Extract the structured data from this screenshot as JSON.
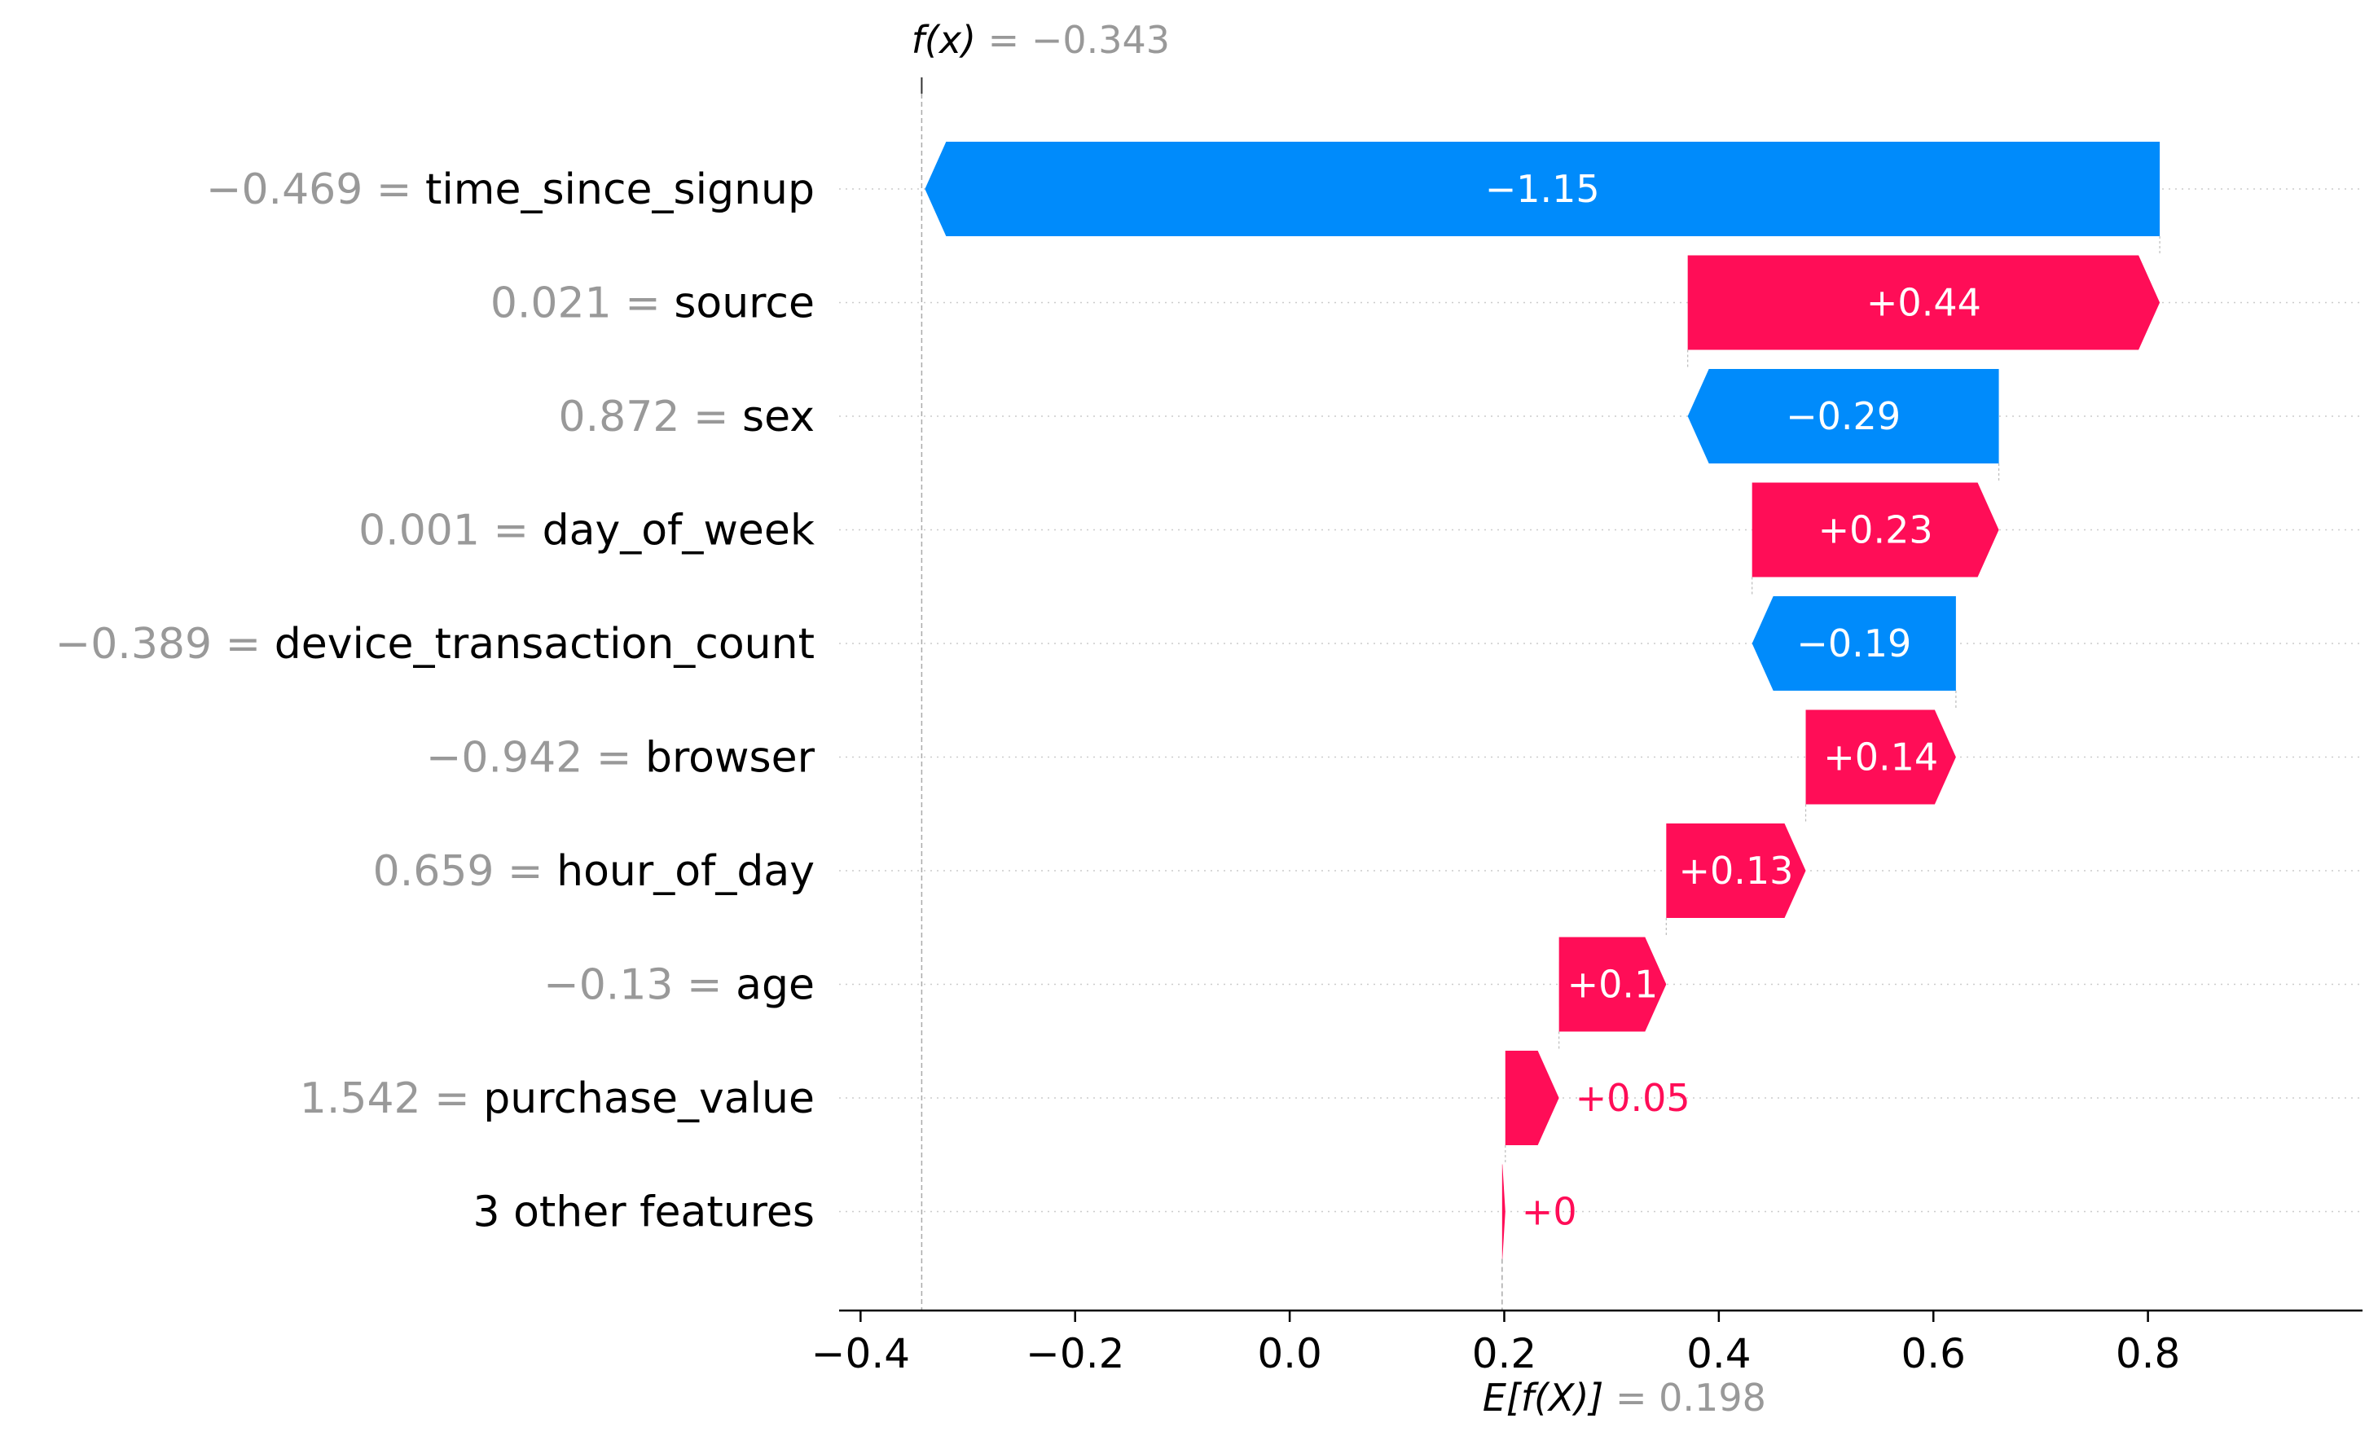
{
  "chart_data": {
    "type": "waterfall",
    "fx_label": "f(x)",
    "fx_value": "= −0.343",
    "base_label": "E[f(X)]",
    "base_value_text": "= 0.198",
    "base_value": 0.198,
    "final_value": -0.343,
    "xlim": [
      -0.42,
      1.0
    ],
    "xticks": [
      -0.4,
      -0.2,
      0.0,
      0.2,
      0.4,
      0.6,
      0.8
    ],
    "xtick_labels": [
      "−0.4",
      "−0.2",
      "0.0",
      "0.2",
      "0.4",
      "0.6",
      "0.8"
    ],
    "grid": "horizontal dotted",
    "features": [
      {
        "value_text": "−0.469 =",
        "name": "time_since_signup",
        "shap": -1.151,
        "label": "−1.15"
      },
      {
        "value_text": "0.021 =",
        "name": "source",
        "shap": 0.44,
        "label": "+0.44"
      },
      {
        "value_text": "0.872 =",
        "name": "sex",
        "shap": -0.29,
        "label": "−0.29"
      },
      {
        "value_text": "0.001 =",
        "name": "day_of_week",
        "shap": 0.23,
        "label": "+0.23"
      },
      {
        "value_text": "−0.389 =",
        "name": "device_transaction_count",
        "shap": -0.19,
        "label": "−0.19"
      },
      {
        "value_text": "−0.942 =",
        "name": "browser",
        "shap": 0.14,
        "label": "+0.14"
      },
      {
        "value_text": "0.659 =",
        "name": "hour_of_day",
        "shap": 0.13,
        "label": "+0.13"
      },
      {
        "value_text": "−0.13 =",
        "name": "age",
        "shap": 0.1,
        "label": "+0.1"
      },
      {
        "value_text": "1.542 =",
        "name": "purchase_value",
        "shap": 0.05,
        "label": "+0.05"
      },
      {
        "value_text": "",
        "name": "3 other features",
        "shap": 0.003,
        "label": "+0"
      }
    ],
    "colors": {
      "positive": "#ff0d57",
      "negative": "#1e88e5",
      "negative_bar": "#008bfb",
      "value_text": "#999999",
      "name_text": "#000000",
      "grid": "#cccccc"
    }
  }
}
